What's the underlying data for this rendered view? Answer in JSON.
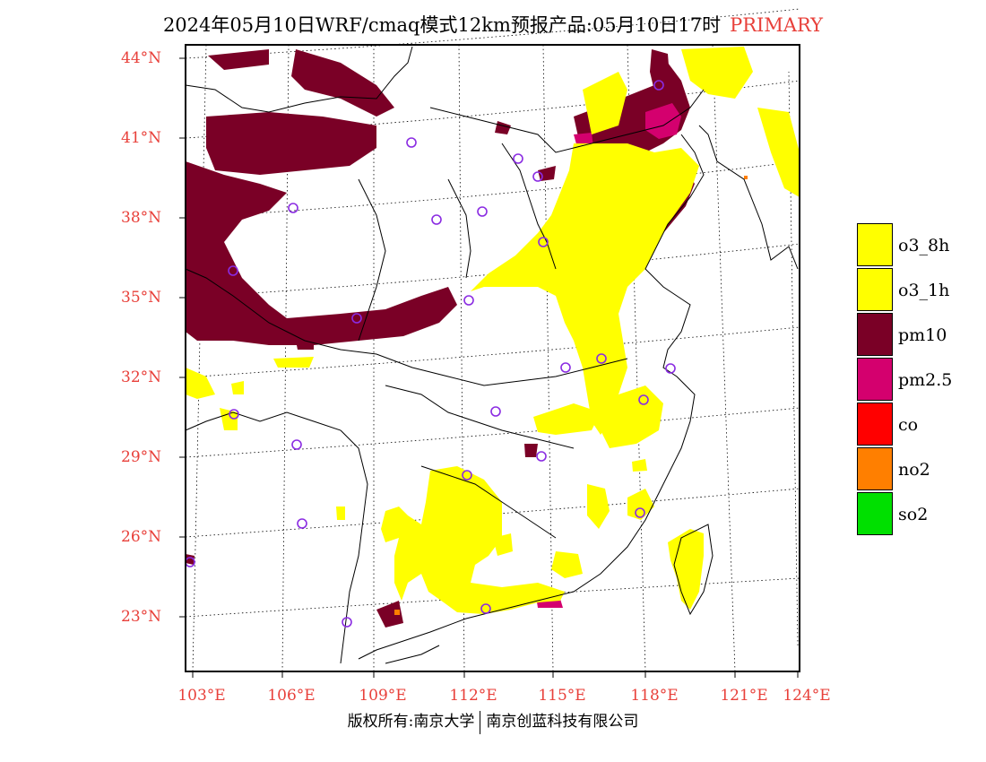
{
  "header": {
    "title": "2024年05月10日WRF/cmaq模式12km预报产品:05月10日17时",
    "tag": "PRIMARY"
  },
  "axes": {
    "lat_labels": [
      "44°N",
      "41°N",
      "38°N",
      "35°N",
      "32°N",
      "29°N",
      "26°N",
      "23°N"
    ],
    "lon_labels": [
      "103°E",
      "106°E",
      "109°E",
      "112°E",
      "115°E",
      "118°E",
      "121°E",
      "124°E"
    ]
  },
  "legend": {
    "items": [
      {
        "label": "o3_8h",
        "color": "#ffff00"
      },
      {
        "label": "o3_1h",
        "color": "#ffff00"
      },
      {
        "label": "pm10",
        "color": "#7a0026"
      },
      {
        "label": "pm2.5",
        "color": "#d4006e"
      },
      {
        "label": "co",
        "color": "#ff0000"
      },
      {
        "label": "no2",
        "color": "#ff7f00"
      },
      {
        "label": "so2",
        "color": "#00e000"
      }
    ]
  },
  "footer": {
    "left": "版权所有:南京大学",
    "right": "南京创蓝科技有限公司"
  },
  "colors": {
    "axis_label": "#e8403a",
    "station_marker": "#8a2be2"
  }
}
